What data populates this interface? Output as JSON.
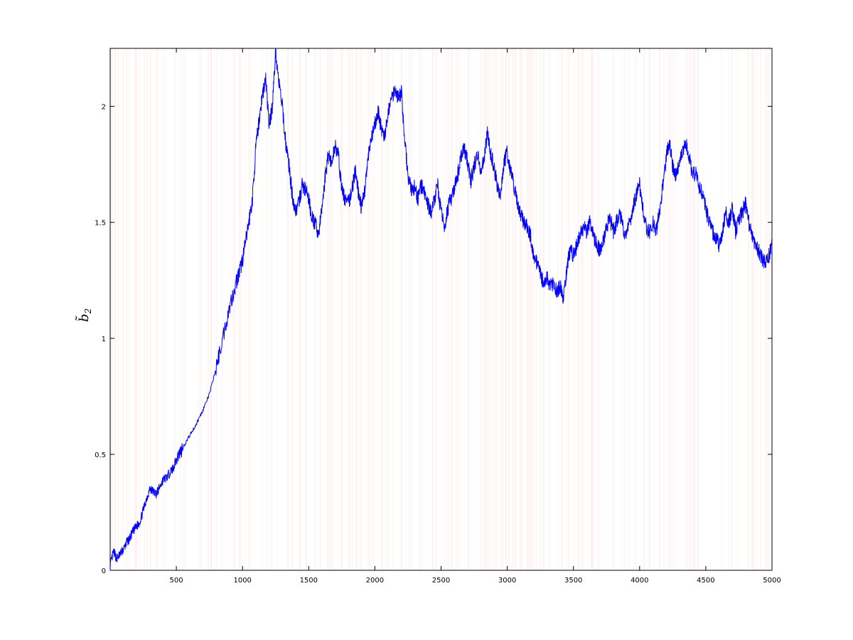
{
  "chart_data": {
    "type": "line",
    "title": "",
    "xlabel": "",
    "ylabel": "b̃",
    "ylabel_subscript": "2",
    "xlim": [
      0,
      5000
    ],
    "ylim": [
      0,
      2.25
    ],
    "xticks": [
      500,
      1000,
      1500,
      2000,
      2500,
      3000,
      3500,
      4000,
      4500,
      5000
    ],
    "yticks": [
      0,
      0.5,
      1,
      1.5,
      2
    ],
    "grid": false,
    "legend": "none",
    "colors": {
      "line": "#0000ff",
      "background_bands": "#ffd6d6"
    },
    "series": [
      {
        "values_xy": [
          [
            0,
            0.02
          ],
          [
            25,
            0.08
          ],
          [
            50,
            0.05
          ],
          [
            75,
            0.07
          ],
          [
            100,
            0.09
          ],
          [
            125,
            0.12
          ],
          [
            150,
            0.14
          ],
          [
            175,
            0.17
          ],
          [
            200,
            0.19
          ],
          [
            225,
            0.21
          ],
          [
            250,
            0.26
          ],
          [
            275,
            0.31
          ],
          [
            300,
            0.35
          ],
          [
            325,
            0.34
          ],
          [
            350,
            0.33
          ],
          [
            375,
            0.36
          ],
          [
            400,
            0.39
          ],
          [
            425,
            0.4
          ],
          [
            450,
            0.42
          ],
          [
            475,
            0.44
          ],
          [
            500,
            0.48
          ],
          [
            550,
            0.53
          ],
          [
            600,
            0.58
          ],
          [
            650,
            0.63
          ],
          [
            700,
            0.69
          ],
          [
            750,
            0.76
          ],
          [
            800,
            0.87
          ],
          [
            850,
            1.0
          ],
          [
            900,
            1.13
          ],
          [
            950,
            1.24
          ],
          [
            975,
            1.28
          ],
          [
            1000,
            1.34
          ],
          [
            1025,
            1.42
          ],
          [
            1050,
            1.51
          ],
          [
            1075,
            1.6
          ],
          [
            1100,
            1.82
          ],
          [
            1125,
            1.94
          ],
          [
            1150,
            2.05
          ],
          [
            1175,
            2.12
          ],
          [
            1200,
            1.92
          ],
          [
            1225,
            2.0
          ],
          [
            1250,
            2.24
          ],
          [
            1275,
            2.1
          ],
          [
            1300,
            2.0
          ],
          [
            1325,
            1.85
          ],
          [
            1350,
            1.75
          ],
          [
            1375,
            1.62
          ],
          [
            1400,
            1.55
          ],
          [
            1425,
            1.58
          ],
          [
            1450,
            1.66
          ],
          [
            1475,
            1.64
          ],
          [
            1500,
            1.6
          ],
          [
            1525,
            1.52
          ],
          [
            1550,
            1.49
          ],
          [
            1575,
            1.45
          ],
          [
            1600,
            1.56
          ],
          [
            1625,
            1.7
          ],
          [
            1650,
            1.8
          ],
          [
            1675,
            1.75
          ],
          [
            1700,
            1.84
          ],
          [
            1725,
            1.78
          ],
          [
            1750,
            1.64
          ],
          [
            1775,
            1.6
          ],
          [
            1800,
            1.58
          ],
          [
            1825,
            1.64
          ],
          [
            1850,
            1.72
          ],
          [
            1875,
            1.63
          ],
          [
            1900,
            1.56
          ],
          [
            1925,
            1.65
          ],
          [
            1950,
            1.78
          ],
          [
            1975,
            1.86
          ],
          [
            2000,
            1.92
          ],
          [
            2025,
            1.98
          ],
          [
            2050,
            1.9
          ],
          [
            2075,
            1.86
          ],
          [
            2100,
            1.98
          ],
          [
            2125,
            2.03
          ],
          [
            2150,
            2.08
          ],
          [
            2175,
            2.04
          ],
          [
            2200,
            2.06
          ],
          [
            2225,
            1.86
          ],
          [
            2250,
            1.7
          ],
          [
            2275,
            1.64
          ],
          [
            2300,
            1.65
          ],
          [
            2325,
            1.6
          ],
          [
            2350,
            1.66
          ],
          [
            2375,
            1.62
          ],
          [
            2400,
            1.58
          ],
          [
            2425,
            1.54
          ],
          [
            2450,
            1.6
          ],
          [
            2475,
            1.66
          ],
          [
            2500,
            1.54
          ],
          [
            2525,
            1.48
          ],
          [
            2550,
            1.56
          ],
          [
            2575,
            1.6
          ],
          [
            2600,
            1.64
          ],
          [
            2625,
            1.7
          ],
          [
            2650,
            1.78
          ],
          [
            2675,
            1.82
          ],
          [
            2700,
            1.76
          ],
          [
            2725,
            1.68
          ],
          [
            2750,
            1.74
          ],
          [
            2775,
            1.8
          ],
          [
            2800,
            1.72
          ],
          [
            2825,
            1.78
          ],
          [
            2850,
            1.88
          ],
          [
            2875,
            1.8
          ],
          [
            2900,
            1.74
          ],
          [
            2925,
            1.66
          ],
          [
            2950,
            1.62
          ],
          [
            2975,
            1.76
          ],
          [
            3000,
            1.8
          ],
          [
            3025,
            1.72
          ],
          [
            3050,
            1.66
          ],
          [
            3075,
            1.58
          ],
          [
            3100,
            1.54
          ],
          [
            3125,
            1.5
          ],
          [
            3150,
            1.48
          ],
          [
            3175,
            1.44
          ],
          [
            3200,
            1.36
          ],
          [
            3225,
            1.32
          ],
          [
            3250,
            1.28
          ],
          [
            3275,
            1.24
          ],
          [
            3300,
            1.26
          ],
          [
            3325,
            1.22
          ],
          [
            3350,
            1.24
          ],
          [
            3375,
            1.2
          ],
          [
            3400,
            1.22
          ],
          [
            3425,
            1.18
          ],
          [
            3450,
            1.3
          ],
          [
            3475,
            1.38
          ],
          [
            3500,
            1.36
          ],
          [
            3525,
            1.4
          ],
          [
            3550,
            1.44
          ],
          [
            3575,
            1.48
          ],
          [
            3600,
            1.46
          ],
          [
            3625,
            1.5
          ],
          [
            3650,
            1.44
          ],
          [
            3675,
            1.4
          ],
          [
            3700,
            1.38
          ],
          [
            3725,
            1.42
          ],
          [
            3750,
            1.48
          ],
          [
            3775,
            1.52
          ],
          [
            3800,
            1.46
          ],
          [
            3825,
            1.5
          ],
          [
            3850,
            1.54
          ],
          [
            3875,
            1.48
          ],
          [
            3900,
            1.44
          ],
          [
            3925,
            1.5
          ],
          [
            3950,
            1.56
          ],
          [
            3975,
            1.62
          ],
          [
            4000,
            1.66
          ],
          [
            4025,
            1.56
          ],
          [
            4050,
            1.48
          ],
          [
            4075,
            1.46
          ],
          [
            4100,
            1.5
          ],
          [
            4125,
            1.46
          ],
          [
            4150,
            1.54
          ],
          [
            4175,
            1.66
          ],
          [
            4200,
            1.78
          ],
          [
            4225,
            1.84
          ],
          [
            4250,
            1.74
          ],
          [
            4275,
            1.7
          ],
          [
            4300,
            1.76
          ],
          [
            4325,
            1.8
          ],
          [
            4350,
            1.84
          ],
          [
            4375,
            1.78
          ],
          [
            4400,
            1.7
          ],
          [
            4425,
            1.72
          ],
          [
            4450,
            1.66
          ],
          [
            4475,
            1.62
          ],
          [
            4500,
            1.56
          ],
          [
            4525,
            1.5
          ],
          [
            4550,
            1.46
          ],
          [
            4575,
            1.44
          ],
          [
            4600,
            1.4
          ],
          [
            4625,
            1.46
          ],
          [
            4650,
            1.54
          ],
          [
            4675,
            1.5
          ],
          [
            4700,
            1.56
          ],
          [
            4725,
            1.46
          ],
          [
            4750,
            1.52
          ],
          [
            4775,
            1.54
          ],
          [
            4800,
            1.58
          ],
          [
            4825,
            1.5
          ],
          [
            4850,
            1.44
          ],
          [
            4875,
            1.4
          ],
          [
            4900,
            1.38
          ],
          [
            4925,
            1.34
          ],
          [
            4950,
            1.32
          ],
          [
            4975,
            1.35
          ],
          [
            5000,
            1.42
          ]
        ]
      }
    ]
  }
}
